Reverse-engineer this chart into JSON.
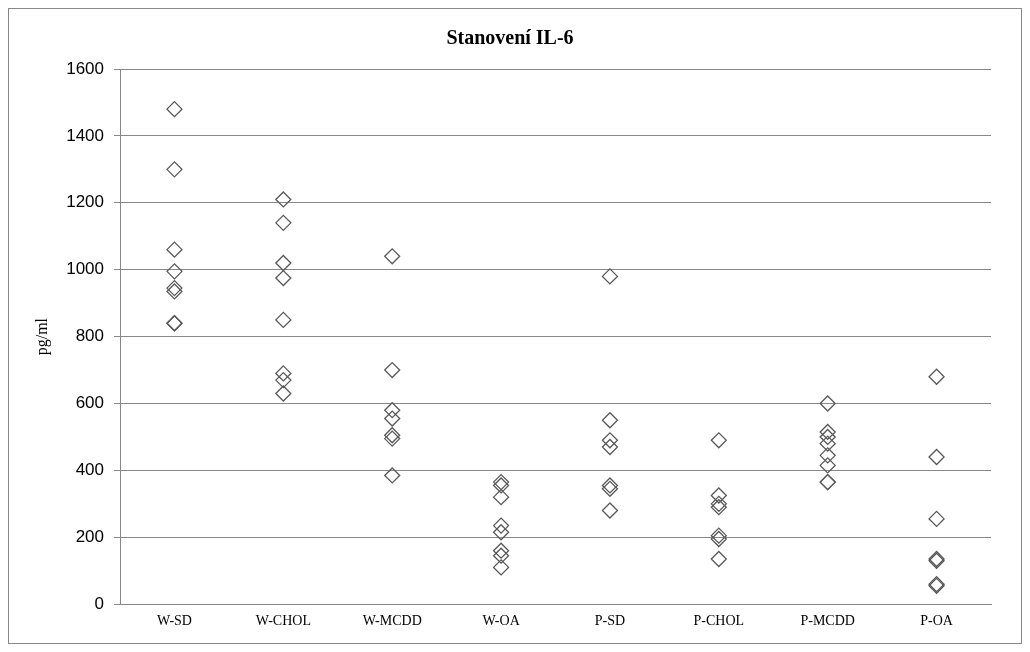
{
  "chart_data": {
    "type": "scatter",
    "title": "Stanovení IL-6",
    "ylabel": "pg/ml",
    "categories": [
      "W-SD",
      "W-CHOL",
      "W-MCDD",
      "W-OA",
      "P-SD",
      "P-CHOL",
      "P-MCDD",
      "P-OA"
    ],
    "series": [
      {
        "color": "#595959",
        "x": [
          "W-SD",
          "W-SD",
          "W-SD",
          "W-SD",
          "W-SD",
          "W-SD",
          "W-SD",
          "W-SD",
          "W-CHOL",
          "W-CHOL",
          "W-CHOL",
          "W-CHOL",
          "W-CHOL",
          "W-CHOL",
          "W-CHOL",
          "W-CHOL",
          "W-MCDD",
          "W-MCDD",
          "W-MCDD",
          "W-MCDD",
          "W-MCDD",
          "W-MCDD",
          "W-MCDD",
          "W-OA",
          "W-OA",
          "W-OA",
          "W-OA",
          "W-OA",
          "W-OA",
          "W-OA",
          "W-OA",
          "P-SD",
          "P-SD",
          "P-SD",
          "P-SD",
          "P-SD",
          "P-SD",
          "P-SD",
          "P-CHOL",
          "P-CHOL",
          "P-CHOL",
          "P-CHOL",
          "P-CHOL",
          "P-CHOL",
          "P-CHOL",
          "P-MCDD",
          "P-MCDD",
          "P-MCDD",
          "P-MCDD",
          "P-MCDD",
          "P-MCDD",
          "P-MCDD",
          "P-MCDD",
          "P-OA",
          "P-OA",
          "P-OA",
          "P-OA",
          "P-OA",
          "P-OA",
          "P-OA"
        ],
        "values": [
          1480,
          1300,
          1060,
          995,
          945,
          935,
          840,
          840,
          1210,
          1140,
          1020,
          975,
          850,
          690,
          670,
          630,
          1040,
          700,
          580,
          555,
          505,
          495,
          385,
          365,
          355,
          320,
          235,
          215,
          160,
          145,
          110,
          980,
          550,
          490,
          470,
          355,
          345,
          280,
          490,
          325,
          300,
          290,
          205,
          195,
          135,
          600,
          515,
          500,
          480,
          445,
          415,
          365,
          365,
          680,
          440,
          255,
          135,
          130,
          60,
          55
        ]
      }
    ],
    "ylim": [
      0,
      1600
    ],
    "yticks": [
      0,
      200,
      400,
      600,
      800,
      1000,
      1200,
      1400,
      1600
    ],
    "grid": "y",
    "legend": false,
    "marker": "diamond"
  }
}
